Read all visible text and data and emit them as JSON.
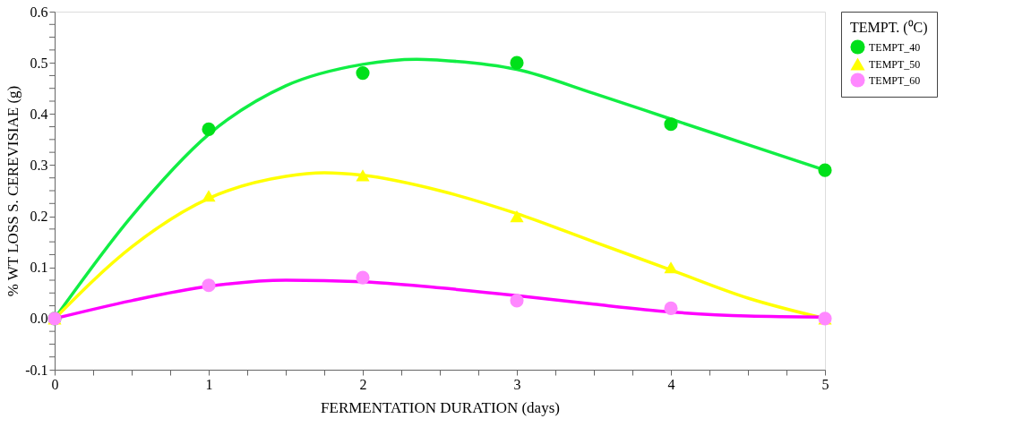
{
  "chart_data": {
    "type": "scatter",
    "xlabel": "FERMENTATION DURATION (days)",
    "ylabel": "% WT LOSS S. CEREVISIAE (g)",
    "legend_title": "TEMPT. (⁰C)",
    "legend": "top right",
    "grid": false,
    "xlim": [
      0,
      5
    ],
    "ylim": [
      -0.1,
      0.6
    ],
    "xticks": [
      0,
      {
        "value": 0.25,
        "label": null
      },
      {
        "value": 0.5,
        "label": null
      },
      {
        "value": 0.75,
        "label": null
      },
      1,
      {
        "value": 1.25,
        "label": null
      },
      {
        "value": 1.5,
        "label": null
      },
      {
        "value": 1.75,
        "label": null
      },
      2,
      {
        "value": 2.25,
        "label": null
      },
      {
        "value": 2.5,
        "label": null
      },
      {
        "value": 2.75,
        "label": null
      },
      3,
      {
        "value": 3.25,
        "label": null
      },
      {
        "value": 3.5,
        "label": null
      },
      {
        "value": 3.75,
        "label": null
      },
      4,
      {
        "value": 4.25,
        "label": null
      },
      {
        "value": 4.5,
        "label": null
      },
      {
        "value": 4.75,
        "label": null
      },
      5
    ],
    "yticks": [
      {
        "value": -0.1,
        "label": "-0.1"
      },
      {
        "value": -0.075,
        "label": null
      },
      {
        "value": -0.05,
        "label": null
      },
      {
        "value": -0.025,
        "label": null
      },
      {
        "value": 0,
        "label": "0.0"
      },
      {
        "value": 0.025,
        "label": null
      },
      {
        "value": 0.05,
        "label": null
      },
      {
        "value": 0.075,
        "label": null
      },
      {
        "value": 0.1,
        "label": "0.1"
      },
      {
        "value": 0.125,
        "label": null
      },
      {
        "value": 0.15,
        "label": null
      },
      {
        "value": 0.175,
        "label": null
      },
      {
        "value": 0.2,
        "label": "0.2"
      },
      {
        "value": 0.225,
        "label": null
      },
      {
        "value": 0.25,
        "label": null
      },
      {
        "value": 0.275,
        "label": null
      },
      {
        "value": 0.3,
        "label": "0.3"
      },
      {
        "value": 0.325,
        "label": null
      },
      {
        "value": 0.35,
        "label": null
      },
      {
        "value": 0.375,
        "label": null
      },
      {
        "value": 0.4,
        "label": "0.4"
      },
      {
        "value": 0.425,
        "label": null
      },
      {
        "value": 0.45,
        "label": null
      },
      {
        "value": 0.475,
        "label": null
      },
      {
        "value": 0.5,
        "label": "0.5"
      },
      {
        "value": 0.525,
        "label": null
      },
      {
        "value": 0.55,
        "label": null
      },
      {
        "value": 0.575,
        "label": null
      },
      {
        "value": 0.6,
        "label": "0.6"
      }
    ],
    "series": [
      {
        "type": "line",
        "color": "#11ee44",
        "x": [
          0,
          0.5,
          1,
          1.5,
          2,
          2.35,
          2.5,
          3,
          3.5,
          4,
          4.5,
          5
        ],
        "values": [
          0,
          0.2,
          0.36,
          0.455,
          0.497,
          0.507,
          0.505,
          0.487,
          0.44,
          0.39,
          0.34,
          0.29
        ]
      },
      {
        "type": "line",
        "color": "#ffff00",
        "x": [
          0,
          0.5,
          1,
          1.5,
          1.75,
          2,
          2.5,
          3,
          3.5,
          4,
          4.5,
          5
        ],
        "values": [
          0,
          0.14,
          0.235,
          0.278,
          0.285,
          0.28,
          0.25,
          0.205,
          0.15,
          0.095,
          0.04,
          0
        ]
      },
      {
        "type": "line",
        "color": "#ff00ff",
        "x": [
          0,
          0.5,
          1,
          1.5,
          2,
          2.5,
          3,
          3.5,
          4,
          4.5,
          5
        ],
        "values": [
          0,
          0.035,
          0.063,
          0.075,
          0.072,
          0.06,
          0.045,
          0.028,
          0.013,
          0.005,
          0.003
        ]
      },
      {
        "type": "scatter",
        "name": "TEMPT_40",
        "color": "#00e01a",
        "marker": "circle",
        "x": [
          0,
          1,
          2,
          3,
          4,
          5
        ],
        "values": [
          0,
          0.37,
          0.48,
          0.5,
          0.38,
          0.29
        ]
      },
      {
        "type": "scatter",
        "name": "TEMPT_50",
        "color": "#ffff00",
        "marker": "triangle",
        "x": [
          0,
          1,
          2,
          3,
          4,
          5
        ],
        "values": [
          0,
          0.24,
          0.28,
          0.2,
          0.1,
          0
        ]
      },
      {
        "type": "scatter",
        "name": "TEMPT_60",
        "color": "#ff88ff",
        "marker": "circle",
        "x": [
          0,
          1,
          2,
          3,
          4,
          5
        ],
        "values": [
          0,
          0.065,
          0.08,
          0.035,
          0.02,
          0
        ]
      }
    ]
  }
}
